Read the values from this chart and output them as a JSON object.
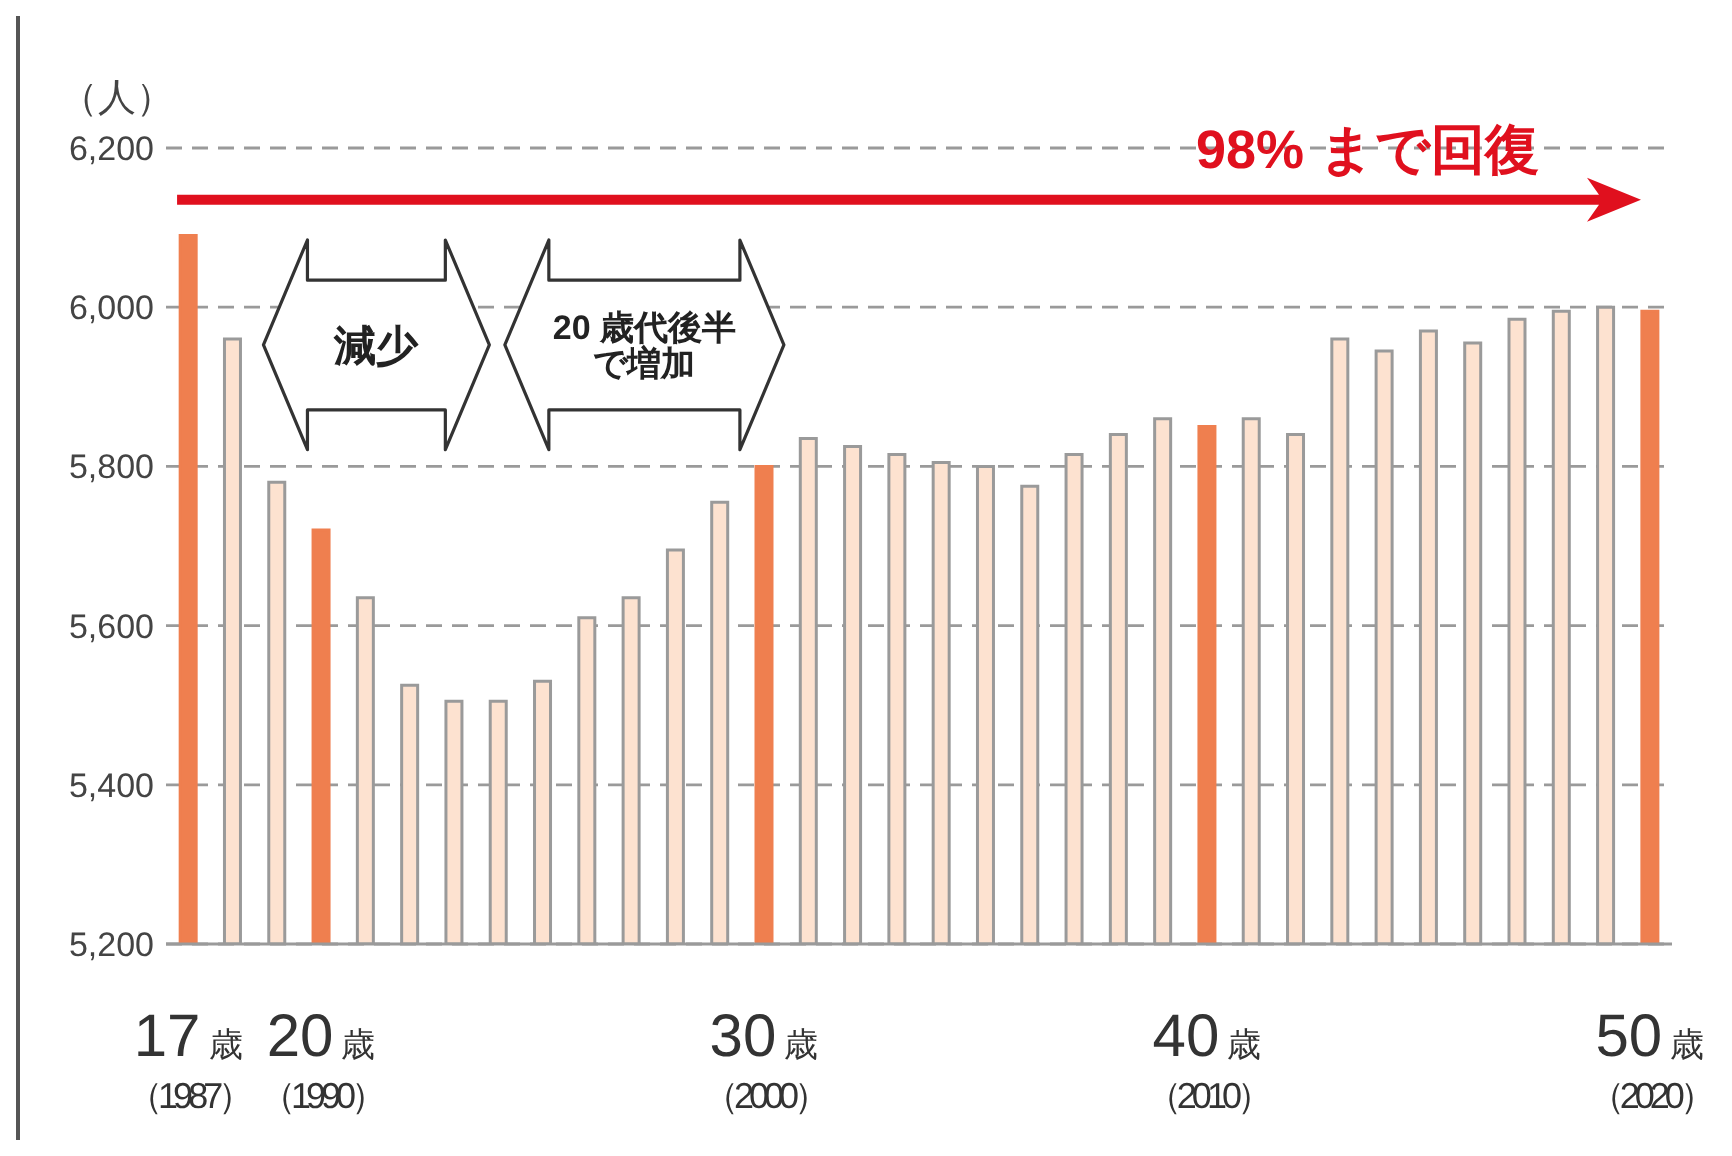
{
  "chart_data": {
    "type": "bar",
    "ylabel": "（人）",
    "categories": [
      "17歳（1987）",
      null,
      null,
      "20歳（1990）",
      null,
      null,
      null,
      null,
      null,
      null,
      null,
      null,
      null,
      "30歳（2000）",
      null,
      null,
      null,
      null,
      null,
      null,
      null,
      null,
      null,
      "40歳（2010）",
      null,
      null,
      null,
      null,
      null,
      null,
      null,
      null,
      null,
      "50歳（2020）"
    ],
    "values": [
      6090,
      5960,
      5780,
      5720,
      5635,
      5525,
      5505,
      5505,
      5530,
      5610,
      5635,
      5695,
      5755,
      5800,
      5835,
      5825,
      5815,
      5805,
      5800,
      5775,
      5815,
      5840,
      5860,
      5850,
      5860,
      5840,
      5960,
      5945,
      5970,
      5955,
      5985,
      5995,
      6000,
      5995
    ],
    "colors": [
      "#ef7f4f",
      "#fde2d0",
      "#fde2d0",
      "#ef7f4f",
      "#fde2d0",
      "#fde2d0",
      "#fde2d0",
      "#fde2d0",
      "#fde2d0",
      "#fde2d0",
      "#fde2d0",
      "#fde2d0",
      "#fde2d0",
      "#ef7f4f",
      "#fde2d0",
      "#fde2d0",
      "#fde2d0",
      "#fde2d0",
      "#fde2d0",
      "#fde2d0",
      "#fde2d0",
      "#fde2d0",
      "#fde2d0",
      "#ef7f4f",
      "#fde2d0",
      "#fde2d0",
      "#fde2d0",
      "#fde2d0",
      "#fde2d0",
      "#fde2d0",
      "#fde2d0",
      "#fde2d0",
      "#fde2d0",
      "#ef7f4f"
    ],
    "ylim": [
      5200,
      6200
    ],
    "yticks": [
      {
        "value": 5200,
        "label": "5,200"
      },
      {
        "value": 5400,
        "label": "5,400"
      },
      {
        "value": 5600,
        "label": "5,600"
      },
      {
        "value": 5800,
        "label": "5,800"
      },
      {
        "value": 6000,
        "label": "6,000"
      },
      {
        "value": 6200,
        "label": "6,200"
      }
    ],
    "grid": "y",
    "annotations": [
      "98% まで回復",
      "減少",
      "20 歳代後半で増加"
    ]
  }
}
